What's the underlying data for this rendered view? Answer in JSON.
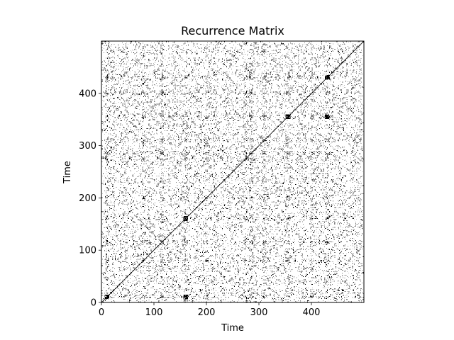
{
  "chart_data": {
    "type": "heatmap",
    "title": "Recurrence Matrix",
    "xlabel": "Time",
    "ylabel": "Time",
    "xlim": [
      0,
      500
    ],
    "ylim": [
      0,
      500
    ],
    "x_ticks": [
      0,
      100,
      200,
      300,
      400
    ],
    "y_ticks": [
      0,
      100,
      200,
      300,
      400
    ],
    "x_tick_labels": [
      "0",
      "100",
      "200",
      "300",
      "400"
    ],
    "y_tick_labels": [
      "0",
      "100",
      "200",
      "300",
      "400"
    ],
    "n_samples": 500,
    "colormap": [
      "#ffffff",
      "#000000"
    ],
    "grid": false,
    "legend": false,
    "diagonal": true,
    "dense_rows": [
      10,
      80,
      115,
      160,
      200,
      275,
      285,
      310,
      355,
      400,
      430
    ],
    "dense_cols": [
      10,
      80,
      115,
      160,
      200,
      275,
      285,
      310,
      355,
      400,
      430
    ],
    "hotspots": [
      {
        "x": 430,
        "y": 430
      },
      {
        "x": 355,
        "y": 355
      },
      {
        "x": 160,
        "y": 160
      },
      {
        "x": 10,
        "y": 10
      },
      {
        "x": 160,
        "y": 10
      },
      {
        "x": 430,
        "y": 355
      }
    ]
  }
}
